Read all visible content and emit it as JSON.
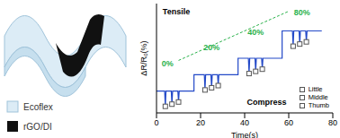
{
  "diagram": {
    "labels": [
      "Ecoflex",
      "rGO/DI"
    ]
  },
  "chart_data": {
    "type": "line",
    "x_label": "Time(s)",
    "y_label": "ΔR/R₀(%)",
    "xlim": [
      0,
      80
    ],
    "xticks": [
      0,
      20,
      40,
      60,
      80
    ],
    "ylim": [
      0,
      100
    ],
    "tick_labels": "x",
    "legend": "lower right",
    "annotations": [
      {
        "text": "Tensile",
        "x": 9,
        "y": 93,
        "color": "#000000"
      },
      {
        "text": "Compress",
        "x": 50,
        "y": 10,
        "color": "#000000"
      },
      {
        "text": "0%",
        "x": 5,
        "y": 45,
        "color": "#2bb24c"
      },
      {
        "text": "20%",
        "x": 25,
        "y": 60,
        "color": "#2bb24c"
      },
      {
        "text": "40%",
        "x": 45,
        "y": 74,
        "color": "#2bb24c"
      },
      {
        "text": "80%",
        "x": 66,
        "y": 92,
        "color": "#2bb24c"
      }
    ],
    "series": [
      {
        "type": "line",
        "color": "#2349c8",
        "x": [
          0,
          3.7,
          4,
          4.3,
          6.7,
          7,
          7.3,
          9.7,
          10,
          10.3,
          17,
          17,
          21.7,
          22,
          22.3,
          24.7,
          25,
          25.3,
          27.7,
          28,
          28.3,
          37,
          37,
          41.7,
          42,
          42.3,
          44.7,
          45,
          45.3,
          47.7,
          48,
          48.3,
          57,
          57,
          61.7,
          62,
          62.3,
          64.7,
          65,
          65.3,
          67.7,
          68,
          68.3,
          75
        ],
        "values": [
          20,
          20,
          6,
          20,
          20,
          8,
          20,
          20,
          10,
          20,
          20,
          35,
          35,
          21,
          35,
          35,
          23,
          35,
          35,
          25,
          35,
          35,
          50,
          50,
          36,
          50,
          50,
          38,
          50,
          50,
          40,
          50,
          50,
          75,
          75,
          61,
          75,
          75,
          63,
          75,
          75,
          65,
          75,
          75
        ]
      },
      {
        "name": "Little",
        "type": "scatter",
        "marker": "square",
        "color": "#555555",
        "x": [
          4,
          22,
          42,
          62
        ],
        "values": [
          6,
          21,
          36,
          61
        ]
      },
      {
        "name": "Middle",
        "type": "scatter",
        "marker": "square",
        "color": "#555555",
        "x": [
          7,
          25,
          45,
          65
        ],
        "values": [
          8,
          23,
          38,
          63
        ]
      },
      {
        "name": "Thumb",
        "type": "scatter",
        "marker": "square",
        "color": "#555555",
        "x": [
          10,
          28,
          48,
          68
        ],
        "values": [
          10,
          25,
          40,
          65
        ]
      }
    ]
  }
}
